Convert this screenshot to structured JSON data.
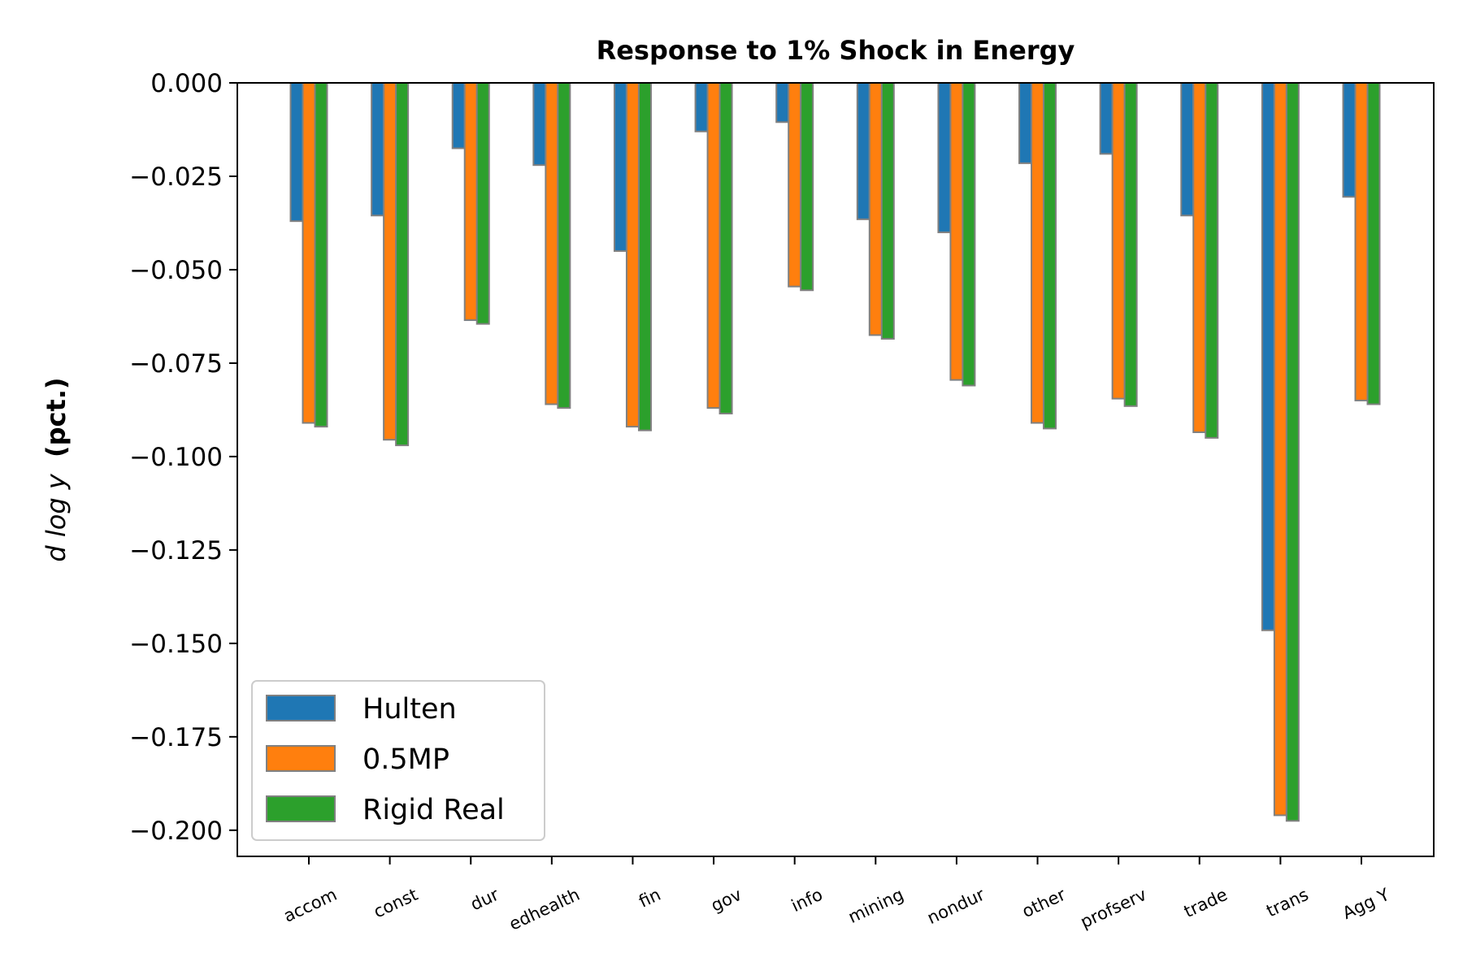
{
  "chart_data": {
    "type": "bar",
    "title": "Response to 1% Shock in Energy",
    "ylabel_math": "d log y",
    "ylabel_bold": "(pct.)",
    "xlabel": "",
    "categories": [
      "accom",
      "const",
      "dur",
      "edhealth",
      "fin",
      "gov",
      "info",
      "mining",
      "nondur",
      "other",
      "profserv",
      "trade",
      "trans",
      "Agg Y"
    ],
    "ylim": [
      -0.207,
      0.0
    ],
    "yticks": [
      0.0,
      -0.025,
      -0.05,
      -0.075,
      -0.1,
      -0.125,
      -0.15,
      -0.175,
      -0.2
    ],
    "ytick_labels": [
      "0.000",
      "−0.025",
      "−0.050",
      "−0.075",
      "−0.100",
      "−0.125",
      "−0.150",
      "−0.175",
      "−0.200"
    ],
    "grid": false,
    "legend_position": "lower-left",
    "series": [
      {
        "name": "Hulten",
        "color": "#1f77b4",
        "values": [
          -0.037,
          -0.0355,
          -0.0175,
          -0.022,
          -0.045,
          -0.013,
          -0.0105,
          -0.0365,
          -0.04,
          -0.0215,
          -0.019,
          -0.0355,
          -0.1465,
          -0.0305
        ]
      },
      {
        "name": "0.5MP",
        "color": "#ff7f0e",
        "values": [
          -0.091,
          -0.0955,
          -0.0635,
          -0.086,
          -0.092,
          -0.087,
          -0.0545,
          -0.0675,
          -0.0795,
          -0.091,
          -0.0845,
          -0.0935,
          -0.196,
          -0.085
        ]
      },
      {
        "name": "Rigid Real",
        "color": "#2ca02c",
        "values": [
          -0.092,
          -0.097,
          -0.0645,
          -0.087,
          -0.093,
          -0.0885,
          -0.0555,
          -0.0685,
          -0.081,
          -0.0925,
          -0.0865,
          -0.095,
          -0.1975,
          -0.086
        ]
      }
    ],
    "bar_edge_color": "#808080"
  }
}
